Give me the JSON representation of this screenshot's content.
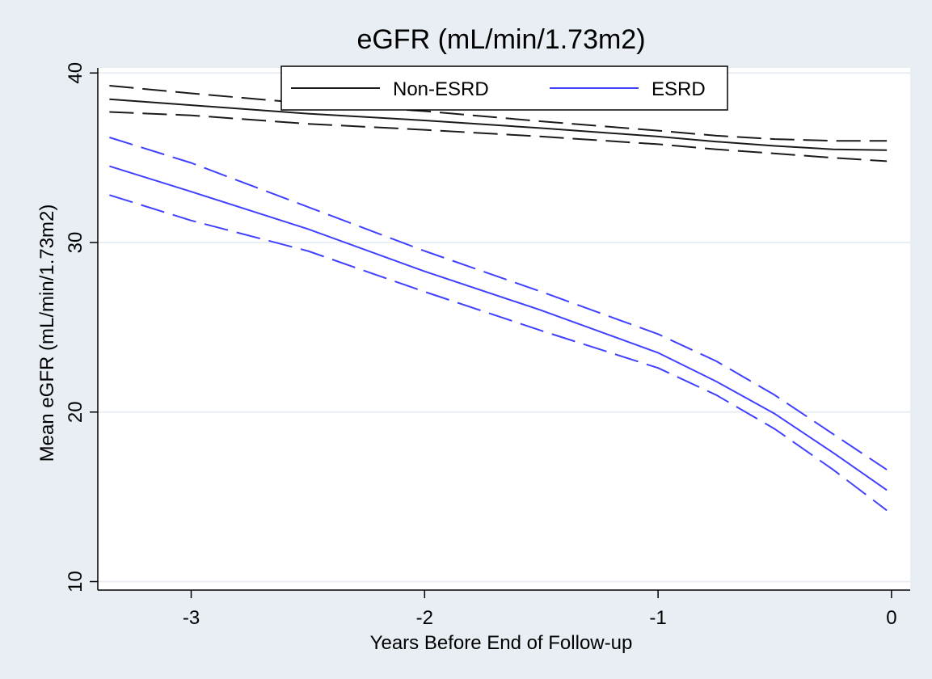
{
  "chart_data": {
    "type": "line",
    "title": "eGFR (mL/min/1.73m2)",
    "xlabel": "Years Before End of Follow-up",
    "ylabel": "Mean eGFR (mL/min/1.73m2)",
    "xlim": [
      -3.4,
      0.08
    ],
    "ylim": [
      9.5,
      40.3
    ],
    "x_ticks": [
      -3,
      -2,
      -1,
      0
    ],
    "x_tick_labels": [
      "-3",
      "-2",
      "-1",
      "0"
    ],
    "y_ticks": [
      10,
      20,
      30,
      40
    ],
    "y_tick_labels": [
      "10",
      "20",
      "30",
      "40"
    ],
    "grid": true,
    "legend_position": "top-center",
    "colors": {
      "outer_background": "#e8eef3",
      "plot_background": "#ffffff",
      "gridline": "#e8eef3",
      "non_esrd": "#1a1a1a",
      "esrd": "#4040ff"
    },
    "x": [
      -3.35,
      -3.0,
      -2.5,
      -2.0,
      -1.5,
      -1.0,
      -0.75,
      -0.5,
      -0.25,
      -0.02
    ],
    "series": [
      {
        "name": "Non-ESRD",
        "style": "solid",
        "color": "#1a1a1a",
        "values": [
          38.45,
          38.1,
          37.6,
          37.2,
          36.75,
          36.25,
          35.95,
          35.7,
          35.5,
          35.45
        ]
      },
      {
        "style": "dashed",
        "color": "#1a1a1a",
        "values": [
          39.25,
          38.8,
          38.2,
          37.75,
          37.15,
          36.6,
          36.3,
          36.1,
          36.0,
          36.0
        ]
      },
      {
        "style": "dashed",
        "color": "#1a1a1a",
        "values": [
          37.7,
          37.5,
          37.0,
          36.65,
          36.25,
          35.8,
          35.5,
          35.25,
          35.0,
          34.8
        ]
      },
      {
        "name": "ESRD",
        "style": "solid",
        "color": "#4040ff",
        "values": [
          34.5,
          33.0,
          30.8,
          28.3,
          26.0,
          23.5,
          21.8,
          19.9,
          17.6,
          15.4
        ]
      },
      {
        "style": "dashed",
        "color": "#4040ff",
        "values": [
          36.2,
          34.7,
          32.1,
          29.5,
          27.1,
          24.6,
          23.0,
          21.0,
          18.7,
          16.6
        ]
      },
      {
        "style": "dashed",
        "color": "#4040ff",
        "values": [
          32.8,
          31.3,
          29.5,
          27.1,
          24.8,
          22.6,
          21.0,
          19.0,
          16.6,
          14.2
        ]
      }
    ]
  }
}
